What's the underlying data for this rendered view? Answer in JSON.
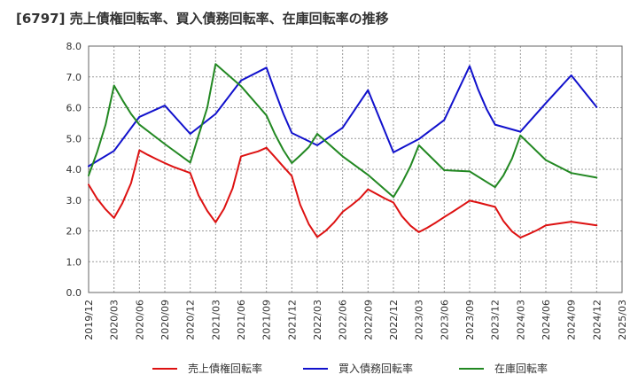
{
  "chart_data": {
    "type": "line",
    "title": "[6797]  売上債権回転率、買入債務回転率、在庫回転率の推移",
    "xlabel": "",
    "ylabel": "",
    "ylim": [
      0,
      8
    ],
    "yticks": [
      "0.0",
      "1.0",
      "2.0",
      "3.0",
      "4.0",
      "5.0",
      "6.0",
      "7.0",
      "8.0"
    ],
    "xticks": [
      "2019/12",
      "2020/03",
      "2020/06",
      "2020/09",
      "2020/12",
      "2021/03",
      "2021/06",
      "2021/09",
      "2021/12",
      "2022/03",
      "2022/06",
      "2022/09",
      "2022/12",
      "2023/03",
      "2023/06",
      "2023/09",
      "2023/12",
      "2024/03",
      "2024/06",
      "2024/09",
      "2024/12",
      "2025/03"
    ],
    "grid": true,
    "legend_position": "bottom",
    "series": [
      {
        "name": "売上債権回転率",
        "color": "#dd1111",
        "x": [
          0,
          0.33,
          0.67,
          1,
          1.33,
          1.67,
          2,
          2.33,
          2.67,
          3,
          3.33,
          3.67,
          4,
          4.33,
          4.67,
          5,
          5.33,
          5.67,
          6,
          6.33,
          6.67,
          7,
          7.33,
          7.67,
          8,
          8.33,
          8.67,
          9,
          9.33,
          9.67,
          10,
          10.33,
          10.67,
          11,
          11.33,
          11.67,
          12,
          12.33,
          12.67,
          13,
          13.33,
          13.67,
          14,
          14.33,
          14.67,
          15,
          15.33,
          15.67,
          16,
          16.33,
          16.67,
          17,
          17.33,
          17.67,
          18,
          18.33,
          18.67,
          19,
          19.33,
          19.67,
          20
        ],
        "y": [
          3.5,
          3.05,
          2.7,
          2.42,
          2.9,
          3.55,
          4.62,
          4.47,
          4.33,
          4.2,
          4.08,
          3.98,
          3.88,
          3.15,
          2.65,
          2.28,
          2.72,
          3.38,
          4.42,
          4.5,
          4.58,
          4.7,
          4.4,
          4.08,
          3.78,
          2.85,
          2.22,
          1.8,
          2.0,
          2.28,
          2.62,
          2.82,
          3.05,
          3.35,
          3.2,
          3.05,
          2.92,
          2.48,
          2.17,
          1.96,
          2.1,
          2.27,
          2.45,
          2.62,
          2.8,
          2.98,
          2.92,
          2.85,
          2.78,
          2.32,
          1.98,
          1.78,
          1.9,
          2.03,
          2.18,
          2.22,
          2.26,
          2.3,
          2.26,
          2.22,
          2.18
        ]
      },
      {
        "name": "買入債務回転率",
        "color": "#1111cc",
        "x": [
          0,
          1,
          2,
          3,
          4,
          5,
          6,
          7,
          7.33,
          7.67,
          8,
          9,
          10,
          11,
          12,
          13,
          14,
          15,
          15.33,
          15.67,
          16,
          17,
          18,
          19,
          20
        ],
        "y": [
          4.1,
          4.6,
          5.7,
          6.07,
          5.15,
          5.8,
          6.88,
          7.3,
          6.55,
          5.8,
          5.18,
          4.78,
          5.35,
          6.57,
          4.55,
          4.98,
          5.6,
          7.35,
          6.6,
          5.95,
          5.45,
          5.22,
          6.15,
          7.05,
          6.02
        ]
      },
      {
        "name": "在庫回転率",
        "color": "#228822",
        "x": [
          0,
          0.33,
          0.67,
          1,
          1.33,
          1.67,
          2,
          3,
          4,
          4.33,
          4.67,
          5,
          6,
          7,
          7.33,
          7.67,
          8,
          8.33,
          8.67,
          9,
          10,
          11,
          12,
          12.33,
          12.67,
          13,
          14,
          15,
          16,
          16.33,
          16.67,
          17,
          18,
          19,
          20
        ],
        "y": [
          3.8,
          4.55,
          5.45,
          6.72,
          6.25,
          5.8,
          5.45,
          4.82,
          4.22,
          5.1,
          6.0,
          7.42,
          6.7,
          5.75,
          5.15,
          4.62,
          4.2,
          4.45,
          4.72,
          5.15,
          4.42,
          3.82,
          3.1,
          3.55,
          4.1,
          4.78,
          3.97,
          3.93,
          3.42,
          3.8,
          4.35,
          5.1,
          4.3,
          3.88,
          3.73
        ]
      }
    ]
  }
}
